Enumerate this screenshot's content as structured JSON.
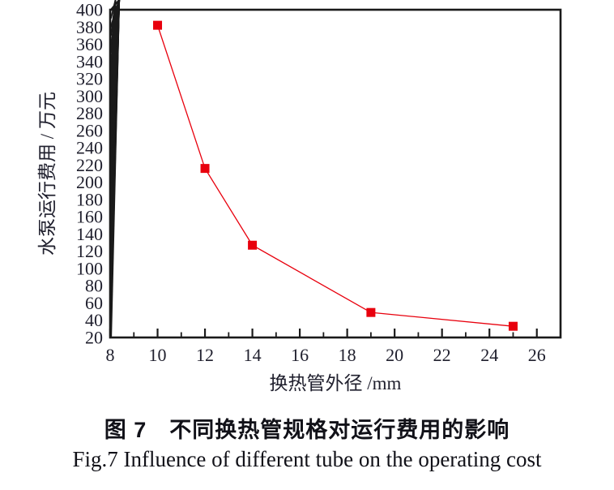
{
  "figure": {
    "caption_zh": "图 7　不同换热管规格对运行费用的影响",
    "caption_en": "Fig.7  Influence of different tube on the operating cost"
  },
  "chart_data": {
    "type": "line",
    "series_name": "水泵运行费用",
    "x": [
      10,
      12,
      14,
      19,
      25
    ],
    "y": [
      382,
      216,
      127,
      49,
      33
    ],
    "xlabel": "换热管外径 /mm",
    "ylabel": "水泵运行费用 / 万元",
    "xlim": [
      8,
      27
    ],
    "ylim": [
      20,
      400
    ],
    "x_major_ticks": [
      8,
      10,
      12,
      14,
      16,
      18,
      20,
      22,
      24,
      26
    ],
    "x_minor_step": 1,
    "y_major_ticks": [
      20,
      40,
      60,
      80,
      100,
      120,
      140,
      160,
      180,
      200,
      220,
      240,
      260,
      280,
      300,
      320,
      340,
      360,
      380,
      400
    ],
    "y_minor_step": 10,
    "grid": false,
    "legend": "none",
    "marker": "square",
    "marker_size": 11,
    "line_color": "#e8000d",
    "marker_color": "#e8000d",
    "axis_color": "#1a1a1a",
    "text_color": "#20202e"
  }
}
